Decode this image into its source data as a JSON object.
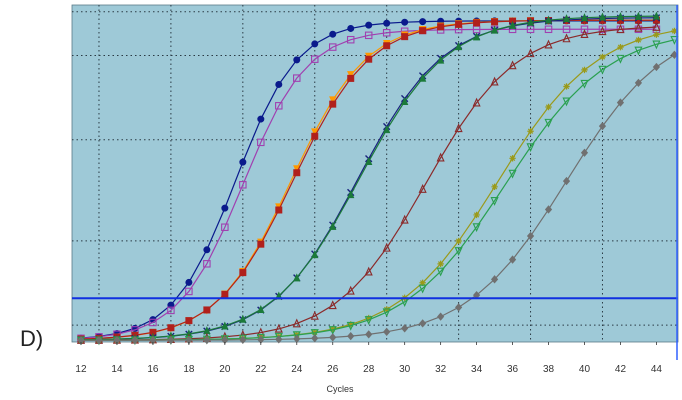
{
  "panel_label": "D)",
  "chart_data": {
    "type": "line",
    "title": "",
    "xlabel": "Cycles",
    "ylabel": "",
    "xlim": [
      11.5,
      45.2
    ],
    "ylim": [
      0,
      1
    ],
    "x_ticks": [
      12,
      14,
      16,
      18,
      20,
      22,
      24,
      26,
      28,
      30,
      32,
      34,
      36,
      38,
      40,
      42,
      44
    ],
    "y_tick_labels": "none",
    "grid": "dotted",
    "legend": "none",
    "threshold": 0.13,
    "colors": {
      "plot_background": "#9ec9d7",
      "grid": "#2a3a44",
      "threshold": "#1030e0",
      "right_axis": "#3060ff"
    },
    "series": [
      {
        "color": "#0a1a8c",
        "marker": "circle",
        "ct": 20.6,
        "plateau": 0.953,
        "slope": 0.58,
        "baseline": 0.005,
        "start": 12,
        "end": 44
      },
      {
        "color": "#a040b0",
        "marker": "square-open",
        "ct": 21.0,
        "plateau": 0.928,
        "slope": 0.56,
        "baseline": 0.005,
        "start": 12,
        "end": 44
      },
      {
        "color": "#ff9900",
        "marker": "triangle-down",
        "ct": 23.7,
        "plateau": 0.955,
        "slope": 0.48,
        "baseline": 0.005,
        "start": 12,
        "end": 44
      },
      {
        "color": "#b0201c",
        "marker": "square",
        "ct": 23.8,
        "plateau": 0.955,
        "slope": 0.47,
        "baseline": 0.005,
        "start": 12,
        "end": 44
      },
      {
        "color": "#1a237e",
        "marker": "x",
        "ct": 27.4,
        "plateau": 0.963,
        "slope": 0.42,
        "baseline": 0.005,
        "start": 12,
        "end": 44
      },
      {
        "color": "#1b7a3a",
        "marker": "triangle",
        "ct": 27.5,
        "plateau": 0.968,
        "slope": 0.41,
        "baseline": 0.005,
        "start": 12,
        "end": 44
      },
      {
        "color": "#8b2a2a",
        "marker": "triangle-open",
        "ct": 31.2,
        "plateau": 0.94,
        "slope": 0.4,
        "baseline": 0.005,
        "start": 12,
        "end": 44
      },
      {
        "color": "#9a9a1a",
        "marker": "star",
        "ct": 35.2,
        "plateau": 0.95,
        "slope": 0.36,
        "baseline": 0.005,
        "start": 12,
        "end": 45
      },
      {
        "color": "#2aa050",
        "marker": "triangle-down-open",
        "ct": 35.6,
        "plateau": 0.93,
        "slope": 0.35,
        "baseline": 0.005,
        "start": 12,
        "end": 45
      },
      {
        "color": "#707070",
        "marker": "diamond",
        "ct": 39.0,
        "plateau": 0.95,
        "slope": 0.36,
        "baseline": 0.005,
        "start": 12,
        "end": 45
      }
    ]
  }
}
